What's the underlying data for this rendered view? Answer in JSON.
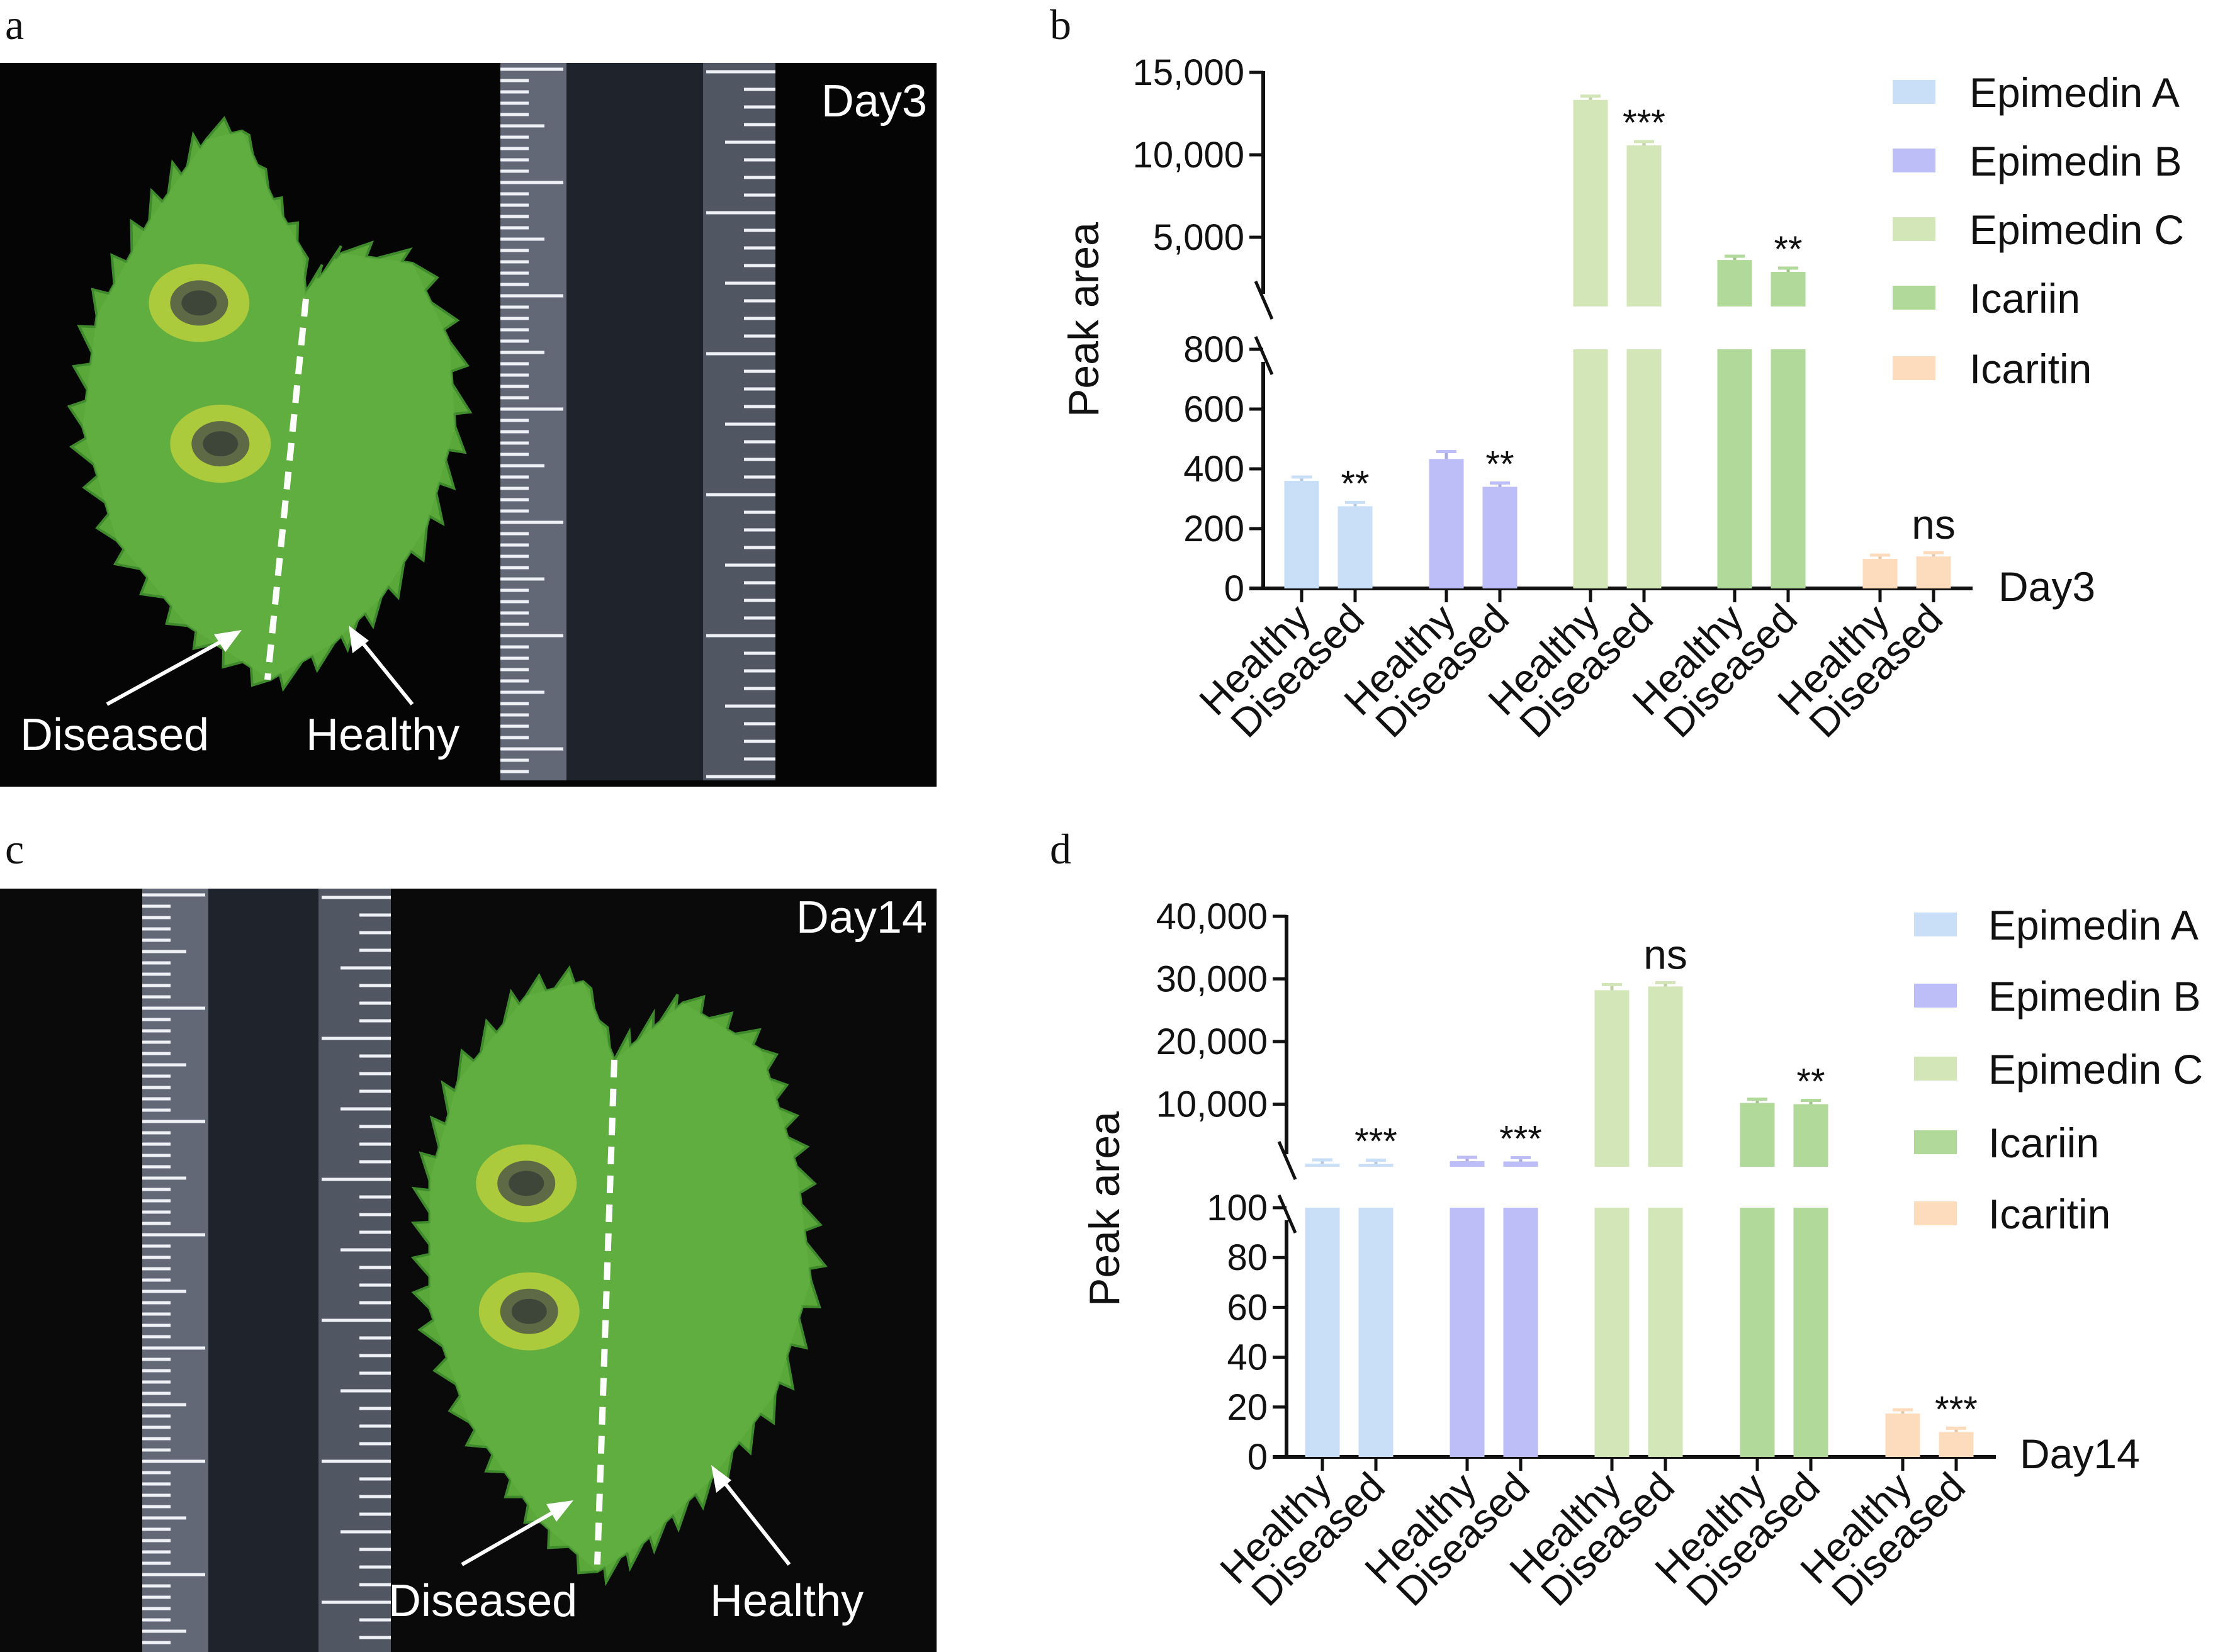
{
  "panels": {
    "a": "a",
    "b": "b",
    "c": "c",
    "d": "d"
  },
  "photo_a": {
    "day": "Day3",
    "diseased": "Diseased",
    "healthy": "Healthy"
  },
  "photo_c": {
    "day": "Day14",
    "diseased": "Diseased",
    "healthy": "Healthy"
  },
  "chart_data": [
    {
      "type": "bar",
      "panel": "b",
      "ylabel": "Peak area",
      "condition_label": "Day3",
      "categories": [
        "Healthy",
        "Diseased"
      ],
      "legend": "top-right",
      "axis_break": true,
      "y_segments": [
        {
          "range": [
            0,
            800
          ],
          "ticks": [
            0,
            200,
            400,
            600,
            800
          ],
          "tick_labels": [
            "0",
            "200",
            "400",
            "600",
            "800"
          ]
        },
        {
          "range": [
            800,
            15000
          ],
          "ticks": [
            5000,
            10000,
            15000
          ],
          "tick_labels": [
            "5,000",
            "10,000",
            "15,000"
          ]
        }
      ],
      "series": [
        {
          "name": "Epimedin A",
          "color": "#c9dff7",
          "values": [
            360,
            275
          ],
          "error": [
            12,
            8
          ],
          "significance": "**"
        },
        {
          "name": "Epimedin B",
          "color": "#bdbdf7",
          "values": [
            433,
            340
          ],
          "error": [
            25,
            8
          ],
          "significance": "**"
        },
        {
          "name": "Epimedin C",
          "color": "#d3e6b7",
          "values": [
            13330,
            10570
          ],
          "error": [
            150,
            180
          ],
          "significance": "***"
        },
        {
          "name": "Icariin",
          "color": "#b0d99a",
          "values": [
            3620,
            2900
          ],
          "error": [
            60,
            60
          ],
          "significance": "**"
        },
        {
          "name": "Icaritin",
          "color": "#fddcbd",
          "values": [
            99,
            107
          ],
          "error": [
            12,
            8
          ],
          "significance": "ns"
        }
      ]
    },
    {
      "type": "bar",
      "panel": "d",
      "ylabel": "Peak area",
      "condition_label": "Day14",
      "categories": [
        "Healthy",
        "Diseased"
      ],
      "legend": "top-right",
      "axis_break": true,
      "y_segments": [
        {
          "range": [
            0,
            100
          ],
          "ticks": [
            0,
            20,
            40,
            60,
            80,
            100
          ],
          "tick_labels": [
            "0",
            "20",
            "40",
            "60",
            "80",
            "100"
          ]
        },
        {
          "range": [
            0,
            40000
          ],
          "ticks": [
            10000,
            20000,
            30000,
            40000
          ],
          "tick_labels": [
            "10,000",
            "20,000",
            "30,000",
            "40,000"
          ]
        }
      ],
      "series": [
        {
          "name": "Epimedin A",
          "color": "#c9dff7",
          "values": [
            500,
            450
          ],
          "error": [
            20,
            15
          ],
          "significance": "***"
        },
        {
          "name": "Epimedin B",
          "color": "#bdbdf7",
          "values": [
            900,
            850
          ],
          "error": [
            30,
            30
          ],
          "significance": "***"
        },
        {
          "name": "Epimedin C",
          "color": "#d3e6b7",
          "values": [
            28200,
            28800
          ],
          "error": [
            900,
            500
          ],
          "significance": "ns"
        },
        {
          "name": "Icariin",
          "color": "#b0d99a",
          "values": [
            10200,
            10000
          ],
          "error": [
            300,
            400
          ],
          "significance": "**"
        },
        {
          "name": "Icaritin",
          "color": "#fddcbd",
          "values": [
            17.4,
            10
          ],
          "error": [
            1.2,
            1.5
          ],
          "significance": "***"
        }
      ]
    }
  ]
}
